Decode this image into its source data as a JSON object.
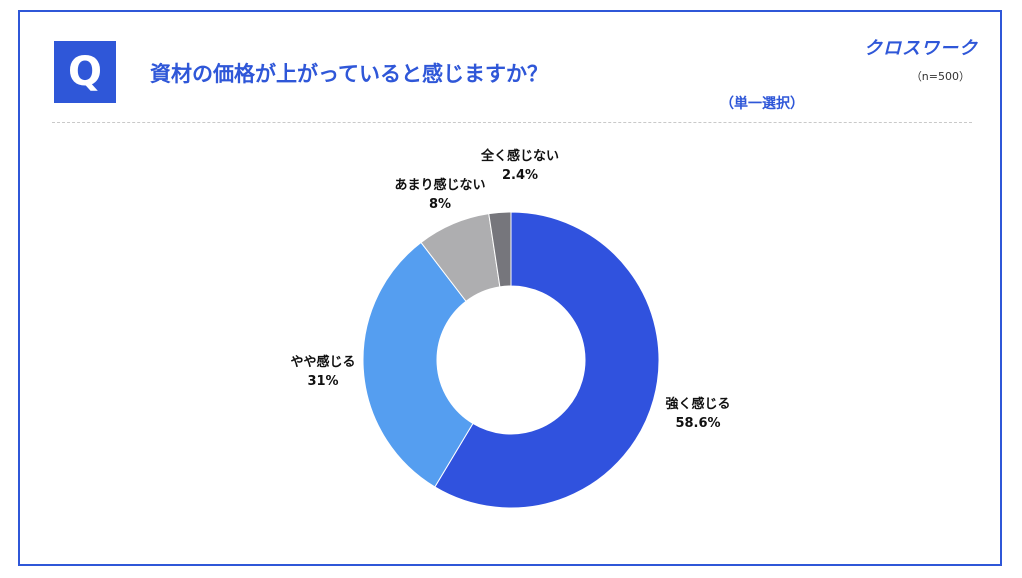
{
  "brand": "クロスワーク",
  "question_badge": "Q",
  "question": "資材の価格が上がっていると感じますか？",
  "sample_size": "（n=500）",
  "selection_type": "（単一選択）",
  "chart_data": {
    "type": "pie",
    "variant": "donut",
    "title": "資材の価格が上がっていると感じますか？",
    "categories": [
      "強く感じる",
      "やや感じる",
      "あまり感じない",
      "全く感じない"
    ],
    "values": [
      58.6,
      31,
      8,
      2.4
    ],
    "value_labels": [
      "58.6%",
      "31%",
      "8%",
      "2.4%"
    ],
    "colors": [
      "#3052de",
      "#559ef0",
      "#aeaeb0",
      "#76767c"
    ],
    "start": "12 o'clock",
    "direction": "clockwise",
    "legend": "none"
  }
}
